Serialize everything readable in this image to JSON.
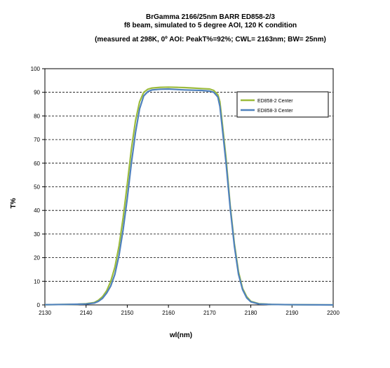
{
  "chart_data": {
    "type": "line",
    "title": "BrGamma 2166/25nm BARR ED858-2/3",
    "subtitle": "f8 beam, simulated to 5 degree AOI, 120 K condition",
    "note": "(measured at 298K, 0º AOI: PeakT%=92%; CWL= 2163nm; BW= 25nm)",
    "xlabel": "wl(nm)",
    "ylabel": "T%",
    "xlim": [
      2130,
      2200
    ],
    "ylim": [
      0,
      100
    ],
    "x_ticks": [
      "2130",
      "2140",
      "2150",
      "2160",
      "2170",
      "2180",
      "2190",
      "2200"
    ],
    "y_ticks": [
      "0",
      "10",
      "20",
      "30",
      "40",
      "50",
      "60",
      "70",
      "80",
      "90",
      "100"
    ],
    "grid": "horizontal dashed",
    "legend_position": "top-right",
    "series": [
      {
        "name": "ED858-2 Center",
        "color": "#9cbb3c",
        "x": [
          2130,
          2135,
          2138,
          2140,
          2142,
          2143,
          2144,
          2145,
          2146,
          2147,
          2148,
          2149,
          2150,
          2151,
          2152,
          2153,
          2154,
          2155,
          2156,
          2158,
          2160,
          2162,
          2164,
          2166,
          2168,
          2170,
          2171,
          2172,
          2172.5,
          2173,
          2174,
          2175,
          2176,
          2177,
          2178,
          2179,
          2180,
          2182,
          2185,
          2190,
          2200
        ],
        "y": [
          0.1,
          0.2,
          0.3,
          0.5,
          1,
          2,
          3.5,
          6,
          10,
          16,
          25,
          37,
          51,
          66,
          78,
          86,
          90,
          91.3,
          91.8,
          92.1,
          92.2,
          92.1,
          92.0,
          91.8,
          91.6,
          91.4,
          90.8,
          89,
          86,
          78,
          62,
          42,
          26,
          14,
          7,
          3.5,
          1.5,
          0.5,
          0.2,
          0.1,
          0
        ]
      },
      {
        "name": "ED858-3 Center",
        "color": "#4f81bd",
        "x": [
          2130,
          2135,
          2138,
          2140,
          2142,
          2143,
          2144,
          2145,
          2146,
          2147,
          2148,
          2149,
          2150,
          2151,
          2152,
          2153,
          2154,
          2155,
          2156,
          2158,
          2160,
          2162,
          2164,
          2166,
          2168,
          2170,
          2171,
          2172,
          2172.5,
          2173,
          2174,
          2175,
          2176,
          2177,
          2178,
          2179,
          2180,
          2182,
          2185,
          2190,
          2200
        ],
        "y": [
          0.1,
          0.2,
          0.3,
          0.4,
          0.8,
          1.5,
          2.8,
          5,
          8,
          13,
          21,
          32,
          45,
          60,
          73,
          83,
          88.5,
          90.3,
          91,
          91.3,
          91.4,
          91.2,
          91.0,
          90.9,
          90.8,
          90.5,
          90,
          88,
          84,
          76,
          60,
          41,
          25,
          13,
          6.5,
          3,
          1.3,
          0.4,
          0.2,
          0.1,
          0
        ]
      }
    ]
  }
}
